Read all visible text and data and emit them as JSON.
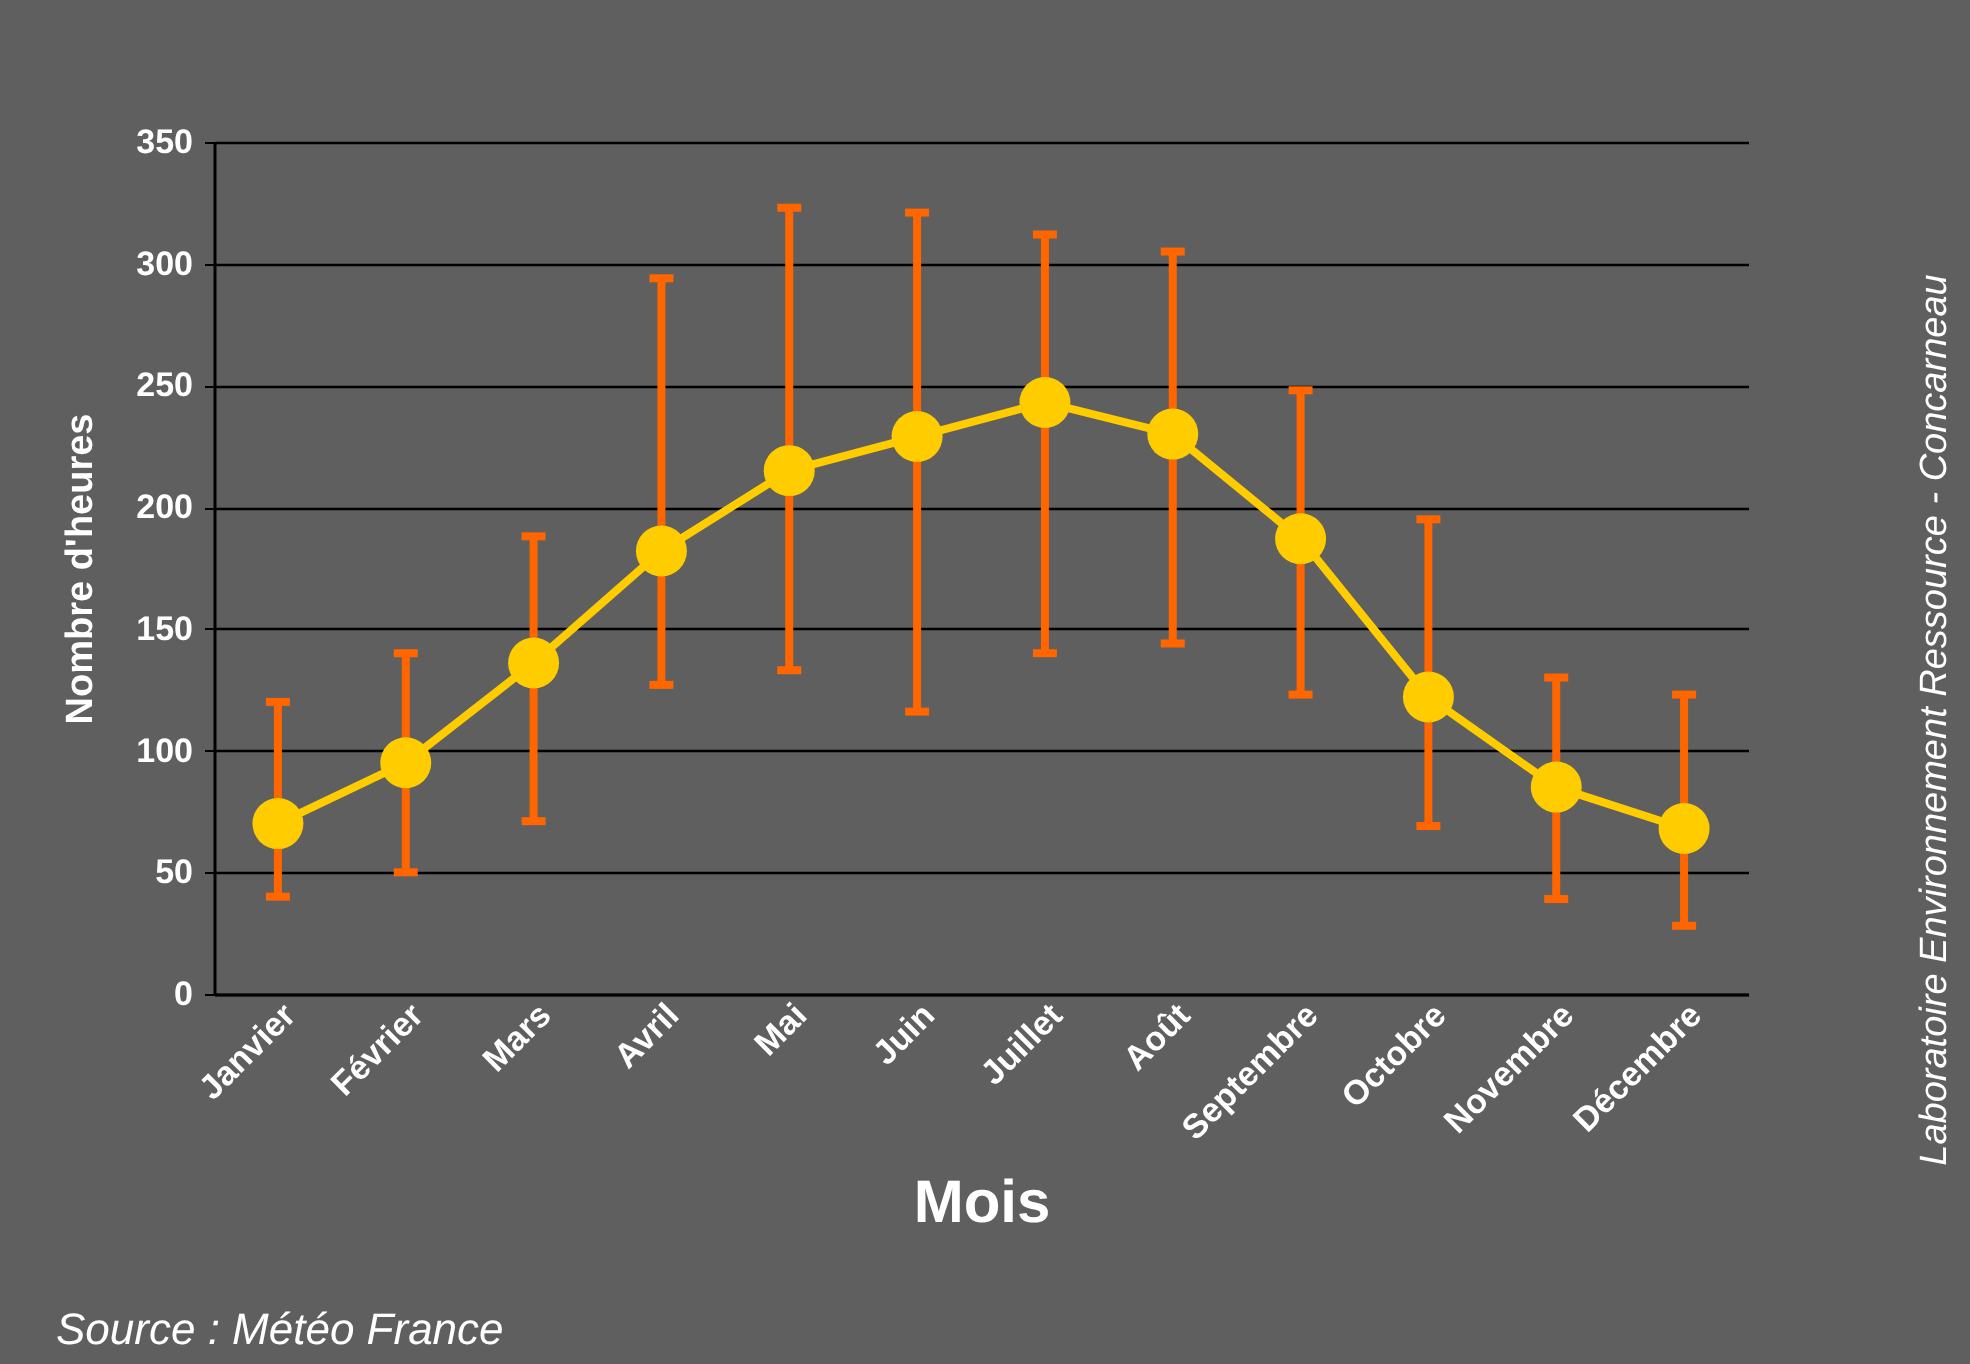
{
  "chart_data": {
    "type": "line",
    "xlabel": "Mois",
    "ylabel": "Nombre d'heures",
    "categories": [
      "Janvier",
      "Février",
      "Mars",
      "Avril",
      "Mai",
      "Juin",
      "Juillet",
      "Août",
      "Septembre",
      "Octobre",
      "Novembre",
      "Décembre"
    ],
    "series": [
      {
        "color": "#ffcc00",
        "values": [
          70,
          95,
          136,
          182,
          215,
          229,
          243,
          230,
          187,
          122,
          85,
          68
        ],
        "errors": [
          [
            40,
            120
          ],
          [
            50,
            140
          ],
          [
            71,
            188
          ],
          [
            127,
            294
          ],
          [
            133,
            323
          ],
          [
            116,
            321
          ],
          [
            140,
            312
          ],
          [
            144,
            305
          ],
          [
            123,
            248
          ],
          [
            69,
            195
          ],
          [
            39,
            130
          ],
          [
            28,
            123
          ]
        ]
      }
    ],
    "ylim": [
      0,
      350
    ],
    "yticks": [
      0,
      50,
      100,
      150,
      200,
      250,
      300,
      350
    ],
    "grid": "y",
    "marker": "circle",
    "line_style": "solid",
    "annotations": [
      "Source : Météo France",
      "Laboratoire Environnement Ressource - Concarneau"
    ]
  }
}
